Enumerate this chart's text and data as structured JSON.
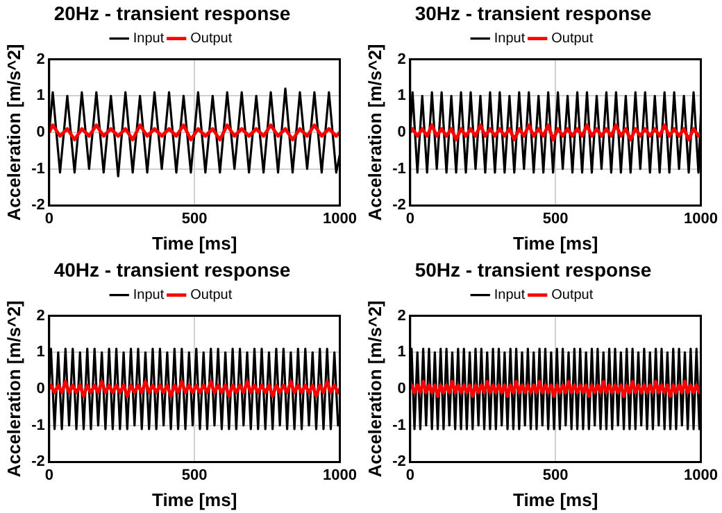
{
  "chart_data": [
    {
      "type": "line",
      "title": "20Hz - transient response",
      "xlabel": "Time [ms]",
      "ylabel": "Acceleration [m/s^2]",
      "xlim": [
        0,
        1000
      ],
      "xticks": [
        0,
        500,
        1000
      ],
      "ylim": [
        -2,
        2
      ],
      "yticks": [
        -2,
        -1,
        0,
        1,
        2
      ],
      "grid": true,
      "legend": "top",
      "marker": "none",
      "x": [
        0,
        12.5,
        37.5,
        62.5,
        87.5,
        112.5,
        137.5,
        162.5,
        187.5,
        212.5,
        237.5,
        262.5,
        287.5,
        312.5,
        337.5,
        362.5,
        387.5,
        412.5,
        437.5,
        462.5,
        487.5,
        512.5,
        537.5,
        562.5,
        587.5,
        612.5,
        637.5,
        662.5,
        687.5,
        712.5,
        737.5,
        762.5,
        787.5,
        812.5,
        837.5,
        862.5,
        887.5,
        912.5,
        937.5,
        962.5,
        987.5,
        1000
      ],
      "series": [
        {
          "name": "Input",
          "color": "#000000",
          "values": [
            0,
            1.1,
            -1.1,
            1.0,
            -1.1,
            1.1,
            -1.0,
            1.1,
            -1.1,
            1.0,
            -1.2,
            1.1,
            -1.1,
            1.0,
            -1.1,
            1.1,
            -1.0,
            1.1,
            -1.1,
            1.0,
            -1.1,
            1.1,
            -1.1,
            1.0,
            -1.1,
            1.1,
            -1.0,
            1.1,
            -1.1,
            1.0,
            -1.1,
            1.1,
            -1.1,
            1.2,
            -1.1,
            1.1,
            -1.0,
            1.1,
            -1.1,
            1.1,
            -1.1,
            -0.6
          ]
        },
        {
          "name": "Output",
          "color": "#ff0000",
          "values": [
            0,
            0.2,
            -0.1,
            0.1,
            -0.2,
            0.1,
            -0.1,
            0.2,
            -0.1,
            0.1,
            -0.1,
            0.1,
            -0.2,
            0.2,
            -0.1,
            0.1,
            -0.1,
            0.1,
            -0.1,
            0.2,
            -0.2,
            0.1,
            -0.1,
            0.1,
            -0.2,
            0.2,
            -0.1,
            0.1,
            -0.1,
            0.1,
            -0.1,
            0.2,
            -0.1,
            0.1,
            -0.2,
            0.1,
            -0.1,
            0.2,
            -0.1,
            0.1,
            -0.1,
            0
          ]
        }
      ]
    },
    {
      "type": "line",
      "title": "30Hz - transient response",
      "xlabel": "Time [ms]",
      "ylabel": "Acceleration [m/s^2]",
      "xlim": [
        0,
        1000
      ],
      "xticks": [
        0,
        500,
        1000
      ],
      "ylim": [
        -2,
        2
      ],
      "yticks": [
        -2,
        -1,
        0,
        1,
        2
      ],
      "grid": true,
      "legend": "top",
      "marker": "none",
      "x": [
        0,
        8.3,
        25,
        41.7,
        58.3,
        75,
        91.7,
        108.3,
        125,
        141.7,
        158.3,
        175,
        191.7,
        208.3,
        225,
        241.7,
        258.3,
        275,
        291.7,
        308.3,
        325,
        341.7,
        358.3,
        375,
        391.7,
        408.3,
        425,
        441.7,
        458.3,
        475,
        491.7,
        508.3,
        525,
        541.7,
        558.3,
        575,
        591.7,
        608.3,
        625,
        641.7,
        658.3,
        675,
        691.7,
        708.3,
        725,
        741.7,
        758.3,
        775,
        791.7,
        808.3,
        825,
        841.7,
        858.3,
        875,
        891.7,
        908.3,
        925,
        941.7,
        958.3,
        975,
        991.7,
        1000
      ],
      "series": [
        {
          "name": "Input",
          "color": "#000000",
          "values": [
            0,
            1.1,
            -1.1,
            1.0,
            -1.1,
            1.1,
            -1.0,
            1.1,
            -1.1,
            1.0,
            -1.1,
            1.1,
            -1.1,
            1.1,
            -1.0,
            1.0,
            -1.1,
            1.1,
            -1.1,
            1.1,
            -1.1,
            1.0,
            -1.1,
            1.1,
            -1.0,
            1.1,
            -1.1,
            1.0,
            -1.1,
            1.1,
            -1.1,
            1.1,
            -1.0,
            1.0,
            -1.1,
            1.1,
            -1.1,
            1.1,
            -1.1,
            1.0,
            -1.0,
            1.1,
            -1.1,
            1.1,
            -1.1,
            1.0,
            -1.1,
            1.1,
            -1.0,
            1.1,
            -1.1,
            1.0,
            -1.1,
            1.1,
            -1.1,
            1.1,
            -1.0,
            1.0,
            -1.1,
            1.1,
            -1.1,
            0.5
          ]
        },
        {
          "name": "Output",
          "color": "#ff0000",
          "values": [
            0,
            0.1,
            -0.1,
            0.1,
            -0.1,
            0.2,
            -0.1,
            0.1,
            -0.1,
            0.1,
            -0.2,
            0.1,
            -0.1,
            0.1,
            -0.1,
            0.2,
            -0.1,
            0.1,
            -0.1,
            0.1,
            -0.1,
            0.1,
            -0.2,
            0.1,
            -0.1,
            0.2,
            -0.1,
            0.1,
            -0.1,
            0.2,
            -0.2,
            0.1,
            -0.1,
            0.1,
            -0.1,
            0.1,
            -0.1,
            0.2,
            -0.1,
            0.1,
            -0.1,
            0.1,
            -0.1,
            0.2,
            -0.1,
            0.1,
            -0.2,
            0.1,
            -0.1,
            0.1,
            -0.1,
            0.1,
            -0.1,
            0.2,
            -0.1,
            0.1,
            -0.1,
            0.1,
            -0.2,
            0.1,
            -0.1,
            0
          ]
        }
      ]
    },
    {
      "type": "line",
      "title": "40Hz - transient response",
      "xlabel": "Time [ms]",
      "ylabel": "Acceleration [m/s^2]",
      "xlim": [
        0,
        1000
      ],
      "xticks": [
        0,
        500,
        1000
      ],
      "ylim": [
        -2,
        2
      ],
      "yticks": [
        -2,
        -1,
        0,
        1,
        2
      ],
      "grid": true,
      "legend": "top",
      "marker": "none",
      "x": [
        0,
        6.25,
        18.75,
        31.25,
        43.75,
        56.25,
        68.75,
        81.25,
        93.75,
        106.25,
        118.75,
        131.25,
        143.75,
        156.25,
        168.75,
        181.25,
        193.75,
        206.25,
        218.75,
        231.25,
        243.75,
        256.25,
        268.75,
        281.25,
        293.75,
        306.25,
        318.75,
        331.25,
        343.75,
        356.25,
        368.75,
        381.25,
        393.75,
        406.25,
        418.75,
        431.25,
        443.75,
        456.25,
        468.75,
        481.25,
        493.75,
        506.25,
        518.75,
        531.25,
        543.75,
        556.25,
        568.75,
        581.25,
        593.75,
        606.25,
        618.75,
        631.25,
        643.75,
        656.25,
        668.75,
        681.25,
        693.75,
        706.25,
        718.75,
        731.25,
        743.75,
        756.25,
        768.75,
        781.25,
        793.75,
        806.25,
        818.75,
        831.25,
        843.75,
        856.25,
        868.75,
        881.25,
        893.75,
        906.25,
        918.75,
        931.25,
        943.75,
        956.25,
        968.75,
        981.25,
        993.75,
        1000
      ],
      "series": [
        {
          "name": "Input",
          "color": "#000000",
          "values": [
            0,
            1.1,
            -1.1,
            1.0,
            -1.1,
            1.1,
            -1.0,
            1.1,
            -1.1,
            1.0,
            -1.1,
            1.1,
            -1.1,
            1.1,
            -1.0,
            1.0,
            -1.1,
            1.1,
            -1.1,
            1.1,
            -1.1,
            1.0,
            -1.1,
            1.1,
            -1.0,
            1.1,
            -1.1,
            1.0,
            -1.1,
            1.1,
            -1.1,
            1.1,
            -1.0,
            1.0,
            -1.1,
            1.1,
            -1.1,
            1.1,
            -1.1,
            1.0,
            -1.0,
            1.1,
            -1.1,
            1.0,
            -1.1,
            1.1,
            -1.0,
            1.1,
            -1.1,
            1.0,
            -1.1,
            1.1,
            -1.1,
            1.1,
            -1.0,
            1.0,
            -1.1,
            1.1,
            -1.1,
            1.1,
            -1.1,
            1.0,
            -1.1,
            1.1,
            -1.0,
            1.1,
            -1.1,
            1.0,
            -1.1,
            1.1,
            -1.1,
            1.1,
            -1.0,
            1.0,
            -1.1,
            1.1,
            -1.1,
            1.1,
            -1.1,
            1.0,
            -1.0,
            -0.7
          ]
        },
        {
          "name": "Output",
          "color": "#ff0000",
          "values": [
            0,
            0.1,
            -0.1,
            0.1,
            -0.1,
            0.2,
            -0.1,
            0.1,
            -0.1,
            0.1,
            -0.2,
            0.1,
            -0.1,
            0.1,
            -0.1,
            0.2,
            -0.1,
            0.1,
            -0.1,
            0.1,
            -0.1,
            0.1,
            -0.2,
            0.1,
            -0.1,
            0.1,
            -0.1,
            0.2,
            -0.1,
            0.1,
            -0.1,
            0.1,
            -0.1,
            0.1,
            -0.2,
            0.1,
            -0.1,
            0.2,
            -0.1,
            0.1,
            -0.1,
            0.1,
            -0.1,
            0.1,
            -0.1,
            0.2,
            -0.1,
            0.1,
            -0.1,
            0.1,
            -0.2,
            0.1,
            -0.1,
            0.1,
            -0.1,
            0.2,
            -0.1,
            0.1,
            -0.1,
            0.1,
            -0.1,
            0.1,
            -0.2,
            0.1,
            -0.1,
            0.1,
            -0.1,
            0.2,
            -0.1,
            0.1,
            -0.1,
            0.1,
            -0.1,
            0.1,
            -0.2,
            0.1,
            -0.1,
            0.2,
            -0.1,
            0.1,
            -0.1,
            0
          ]
        }
      ]
    },
    {
      "type": "line",
      "title": "50Hz - transient response",
      "xlabel": "Time [ms]",
      "ylabel": "Acceleration [m/s^2]",
      "xlim": [
        0,
        1000
      ],
      "xticks": [
        0,
        500,
        1000
      ],
      "ylim": [
        -2,
        2
      ],
      "yticks": [
        -2,
        -1,
        0,
        1,
        2
      ],
      "grid": true,
      "legend": "top",
      "marker": "none",
      "x": [
        0,
        5,
        15,
        25,
        35,
        45,
        55,
        65,
        75,
        85,
        95,
        105,
        115,
        125,
        135,
        145,
        155,
        165,
        175,
        185,
        195,
        205,
        215,
        225,
        235,
        245,
        255,
        265,
        275,
        285,
        295,
        305,
        315,
        325,
        335,
        345,
        355,
        365,
        375,
        385,
        395,
        405,
        415,
        425,
        435,
        445,
        455,
        465,
        475,
        485,
        495,
        505,
        515,
        525,
        535,
        545,
        555,
        565,
        575,
        585,
        595,
        605,
        615,
        625,
        635,
        645,
        655,
        665,
        675,
        685,
        695,
        705,
        715,
        725,
        735,
        745,
        755,
        765,
        775,
        785,
        795,
        805,
        815,
        825,
        835,
        845,
        855,
        865,
        875,
        885,
        895,
        905,
        915,
        925,
        935,
        945,
        955,
        965,
        975,
        985,
        995,
        1000
      ],
      "series": [
        {
          "name": "Input",
          "color": "#000000",
          "values": [
            0,
            1.1,
            -1.1,
            1.0,
            -1.1,
            1.1,
            -1.0,
            1.1,
            -1.1,
            1.0,
            -1.1,
            1.1,
            -1.1,
            1.1,
            -1.0,
            1.0,
            -1.1,
            1.1,
            -1.1,
            1.1,
            -1.1,
            1.0,
            -1.1,
            1.1,
            -1.0,
            1.1,
            -1.1,
            1.0,
            -1.1,
            1.1,
            -1.1,
            1.1,
            -1.0,
            1.0,
            -1.1,
            1.1,
            -1.1,
            1.1,
            -1.1,
            1.0,
            -1.0,
            1.1,
            -1.1,
            1.0,
            -1.1,
            1.1,
            -1.0,
            1.1,
            -1.1,
            1.0,
            -1.1,
            1.1,
            -1.1,
            1.1,
            -1.0,
            1.0,
            -1.1,
            1.1,
            -1.1,
            1.1,
            -1.1,
            1.0,
            -1.1,
            1.1,
            -1.0,
            1.1,
            -1.1,
            1.0,
            -1.1,
            1.1,
            -1.1,
            1.1,
            -1.0,
            1.0,
            -1.1,
            1.1,
            -1.1,
            1.1,
            -1.1,
            1.0,
            -1.0,
            1.1,
            -1.1,
            1.0,
            -1.1,
            1.1,
            -1.0,
            1.1,
            -1.1,
            1.0,
            -1.1,
            1.1,
            -1.1,
            1.1,
            -1.0,
            1.0,
            -1.1,
            1.1,
            -1.1,
            1.1,
            -1.1,
            0.6
          ]
        },
        {
          "name": "Output",
          "color": "#ff0000",
          "values": [
            0,
            0.1,
            -0.1,
            0.1,
            -0.1,
            0.2,
            -0.1,
            0.1,
            -0.1,
            0.1,
            -0.2,
            0.1,
            -0.1,
            0.1,
            -0.1,
            0.2,
            -0.1,
            0.1,
            -0.1,
            0.1,
            -0.1,
            0.1,
            -0.2,
            0.1,
            -0.1,
            0.1,
            -0.1,
            0.2,
            -0.1,
            0.1,
            -0.1,
            0.1,
            -0.1,
            0.1,
            -0.2,
            0.1,
            -0.1,
            0.2,
            -0.1,
            0.1,
            -0.1,
            0.1,
            -0.1,
            0.1,
            -0.1,
            0.2,
            -0.1,
            0.1,
            -0.1,
            0.1,
            -0.2,
            0.1,
            -0.1,
            0.1,
            -0.1,
            0.2,
            -0.1,
            0.1,
            -0.1,
            0.1,
            -0.1,
            0.1,
            -0.2,
            0.1,
            -0.1,
            0.1,
            -0.1,
            0.2,
            -0.1,
            0.1,
            -0.1,
            0.1,
            -0.1,
            0.1,
            -0.2,
            0.1,
            -0.1,
            0.2,
            -0.1,
            0.1,
            -0.1,
            0.1,
            -0.1,
            0.1,
            -0.1,
            0.2,
            -0.1,
            0.1,
            -0.1,
            0.1,
            -0.2,
            0.1,
            -0.1,
            0.1,
            -0.1,
            0.2,
            -0.1,
            0.1,
            -0.1,
            0.1,
            -0.1,
            0
          ]
        }
      ]
    }
  ]
}
